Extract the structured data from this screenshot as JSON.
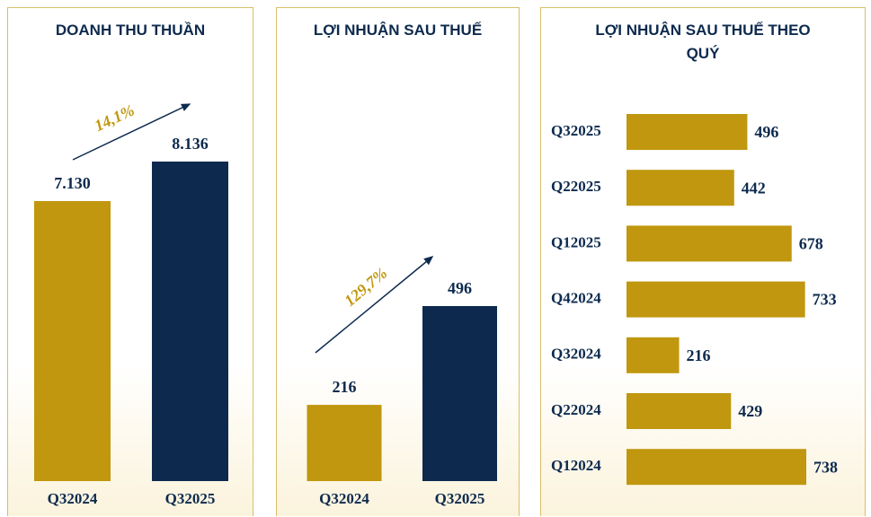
{
  "chart_data": [
    {
      "type": "bar",
      "title": "DOANH THU THUẦN",
      "categories": [
        "Q32024",
        "Q32025"
      ],
      "values": [
        7130,
        8136
      ],
      "value_labels": [
        "7.130",
        "8.136"
      ],
      "colors": [
        "#c0970e",
        "#0d2a4e"
      ],
      "annotation": "14,1%"
    },
    {
      "type": "bar",
      "title": "LỢI NHUẬN SAU THUẾ",
      "categories": [
        "Q32024",
        "Q32025"
      ],
      "values": [
        216,
        496
      ],
      "colors": [
        "#c0970e",
        "#0d2a4e"
      ],
      "annotation": "129,7%"
    },
    {
      "type": "hbar",
      "title": "LỢI NHUẬN SAU THUẾ THEO QUÝ",
      "categories": [
        "Q32025",
        "Q22025",
        "Q12025",
        "Q42024",
        "Q32024",
        "Q22024",
        "Q12024"
      ],
      "values": [
        496,
        442,
        678,
        733,
        216,
        429,
        738
      ],
      "color": "#c0970e"
    }
  ]
}
